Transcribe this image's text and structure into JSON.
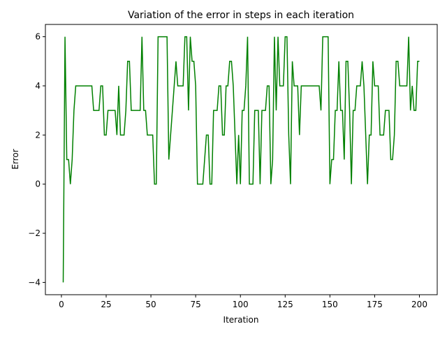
{
  "chart_data": {
    "type": "line",
    "title": "Variation of the error in steps in each iteration",
    "x_label": "Iteration",
    "y_label": "Error",
    "x": [
      1,
      2,
      3,
      4,
      5,
      6,
      7,
      8,
      9,
      10,
      11,
      12,
      13,
      14,
      15,
      16,
      17,
      18,
      19,
      20,
      21,
      22,
      23,
      24,
      25,
      26,
      27,
      28,
      29,
      30,
      31,
      32,
      33,
      34,
      35,
      36,
      37,
      38,
      39,
      40,
      41,
      42,
      43,
      44,
      45,
      46,
      47,
      48,
      49,
      50,
      51,
      52,
      53,
      54,
      55,
      56,
      57,
      58,
      59,
      60,
      61,
      62,
      63,
      64,
      65,
      66,
      67,
      68,
      69,
      70,
      71,
      72,
      73,
      74,
      75,
      76,
      77,
      78,
      79,
      80,
      81,
      82,
      83,
      84,
      85,
      86,
      87,
      88,
      89,
      90,
      91,
      92,
      93,
      94,
      95,
      96,
      97,
      98,
      99,
      100,
      101,
      102,
      103,
      104,
      105,
      106,
      107,
      108,
      109,
      110,
      111,
      112,
      113,
      114,
      115,
      116,
      117,
      118,
      119,
      120,
      121,
      122,
      123,
      124,
      125,
      126,
      127,
      128,
      129,
      130,
      131,
      132,
      133,
      134,
      135,
      136,
      137,
      138,
      139,
      140,
      141,
      142,
      143,
      144,
      145,
      146,
      147,
      148,
      149,
      150,
      151,
      152,
      153,
      154,
      155,
      156,
      157,
      158,
      159,
      160,
      161,
      162,
      163,
      164,
      165,
      166,
      167,
      168,
      169,
      170,
      171,
      172,
      173,
      174,
      175,
      176,
      177,
      178,
      179,
      180,
      181,
      182,
      183,
      184,
      185,
      186,
      187,
      188,
      189,
      190,
      191,
      192,
      193,
      194,
      195,
      196,
      197,
      198,
      199,
      200
    ],
    "series": [
      {
        "color": "#008000",
        "values": [
          -4,
          6,
          1,
          1,
          0,
          1,
          3,
          4,
          4,
          4,
          4,
          4,
          4,
          4,
          4,
          4,
          4,
          3,
          3,
          3,
          3,
          4,
          4,
          2,
          2,
          3,
          3,
          3,
          3,
          3,
          2,
          4,
          2,
          2,
          2,
          3,
          5,
          5,
          3,
          3,
          3,
          3,
          3,
          3,
          6,
          3,
          3,
          2,
          2,
          2,
          2,
          0,
          0,
          6,
          6,
          6,
          6,
          6,
          6,
          1,
          2,
          3,
          4,
          5,
          4,
          4,
          4,
          4,
          6,
          6,
          3,
          6,
          5,
          5,
          4,
          0,
          0,
          0,
          0,
          1,
          2,
          2,
          0,
          0,
          3,
          3,
          3,
          4,
          4,
          2,
          2,
          4,
          4,
          5,
          5,
          4,
          2,
          0,
          2,
          0,
          3,
          3,
          4,
          6,
          0,
          0,
          0,
          3,
          3,
          3,
          0,
          3,
          3,
          3,
          4,
          4,
          0,
          1,
          6,
          3,
          6,
          4,
          4,
          4,
          6,
          6,
          2,
          0,
          5,
          4,
          4,
          4,
          2,
          4,
          4,
          4,
          4,
          4,
          4,
          4,
          4,
          4,
          4,
          4,
          3,
          6,
          6,
          6,
          6,
          0,
          1,
          1,
          3,
          3,
          5,
          3,
          3,
          1,
          5,
          5,
          3,
          0,
          3,
          3,
          4,
          4,
          4,
          5,
          4,
          2,
          0,
          2,
          2,
          5,
          4,
          4,
          4,
          2,
          2,
          2,
          3,
          3,
          3,
          1,
          1,
          2,
          5,
          5,
          4,
          4,
          4,
          4,
          4,
          6,
          3,
          4,
          3,
          3,
          5,
          5
        ]
      }
    ],
    "xlim": [
      -8.95,
      209.95
    ],
    "xticks": [
      0,
      25,
      50,
      75,
      100,
      125,
      150,
      175,
      200
    ],
    "ylim": [
      -4.5,
      6.5
    ],
    "yticks": [
      {
        "value": -4,
        "label": "−4"
      },
      {
        "value": -2,
        "label": "−2"
      },
      0,
      2,
      4,
      6
    ]
  }
}
